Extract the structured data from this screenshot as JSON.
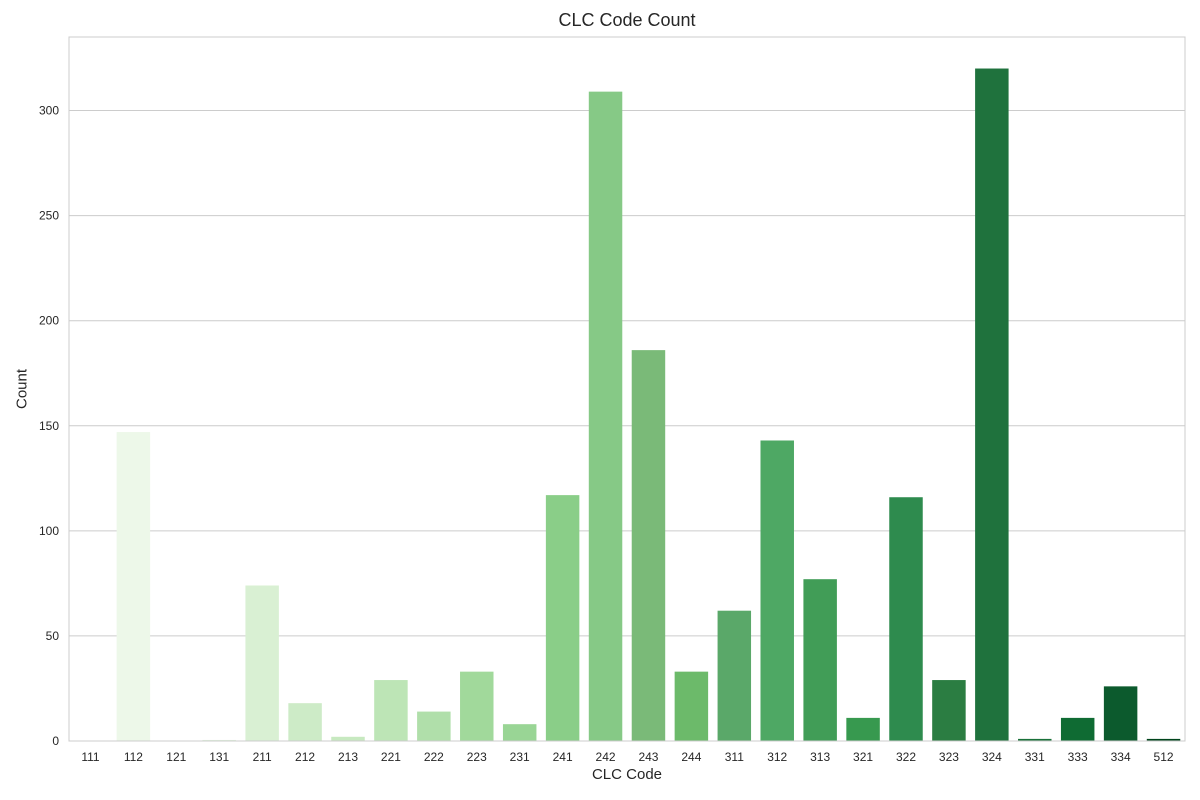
{
  "chart_data": {
    "type": "bar",
    "title": "CLC Code Count",
    "xlabel": "CLC Code",
    "ylabel": "Count",
    "categories": [
      "111",
      "112",
      "121",
      "131",
      "211",
      "212",
      "213",
      "221",
      "222",
      "223",
      "231",
      "241",
      "242",
      "243",
      "244",
      "311",
      "312",
      "313",
      "321",
      "322",
      "323",
      "324",
      "331",
      "333",
      "334",
      "512"
    ],
    "values": [
      0,
      147,
      0,
      0.5,
      74,
      18,
      2,
      29,
      14,
      33,
      8,
      117,
      309,
      186,
      33,
      62,
      143,
      77,
      11,
      116,
      29,
      320,
      1,
      11,
      26,
      1
    ],
    "colors": [
      "#f7fcf5",
      "#edf8e9",
      "#e5f5e0",
      "#e1f3db",
      "#d9f0d3",
      "#cdebc7",
      "#c7e9c0",
      "#bde5b6",
      "#b0dfaa",
      "#a1d99b",
      "#99d595",
      "#8ace88",
      "#86c986",
      "#7aba78",
      "#6cba6a",
      "#5aa869",
      "#4ea864",
      "#419d57",
      "#37994f",
      "#2e8b4e",
      "#2b7d42",
      "#1f723d",
      "#197139",
      "#0f6b33",
      "#0c5a2d",
      "#00441b"
    ],
    "yticks": [
      0,
      50,
      100,
      150,
      200,
      250,
      300
    ],
    "ylim": [
      0,
      335
    ],
    "grid": true,
    "legend": "none"
  }
}
